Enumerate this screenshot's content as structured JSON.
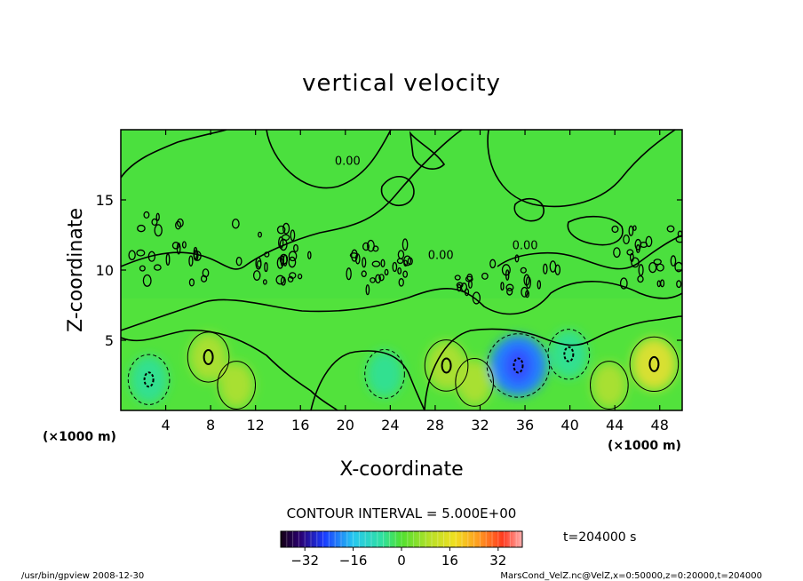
{
  "chart_data": {
    "type": "heatmap",
    "title": "vertical velocity",
    "xlabel": "X-coordinate",
    "ylabel": "Z-coordinate",
    "x_unit_left": "(×1000 m)",
    "x_unit_right": "(×1000 m)",
    "xlim": [
      0,
      50
    ],
    "ylim": [
      0,
      20
    ],
    "x_ticks": [
      4,
      8,
      12,
      16,
      20,
      24,
      28,
      32,
      36,
      40,
      44,
      48
    ],
    "y_ticks": [
      5,
      10,
      15
    ],
    "contour_interval_text": "CONTOUR INTERVAL = 5.000E+00",
    "time_text": "t=204000 s",
    "colorbar": {
      "range": [
        -40,
        40
      ],
      "ticks": [
        -32,
        -16,
        0,
        16,
        32
      ],
      "tick_labels": [
        "−32",
        "−16",
        "0",
        "16",
        "32"
      ]
    },
    "contour_labels": [
      {
        "x": 20.2,
        "y": 17.5,
        "text": "0.00"
      },
      {
        "x": 28.5,
        "y": 10.8,
        "text": "0.00"
      },
      {
        "x": 36.0,
        "y": 11.5,
        "text": "0.00"
      }
    ],
    "features": [
      {
        "x": 2.5,
        "y": 2.2,
        "value": -8
      },
      {
        "x": 7.8,
        "y": 3.8,
        "value": 8
      },
      {
        "x": 10.3,
        "y": 1.8,
        "value": 6
      },
      {
        "x": 23.5,
        "y": 2.6,
        "value": -7
      },
      {
        "x": 29.0,
        "y": 3.2,
        "value": 9
      },
      {
        "x": 31.5,
        "y": 2.0,
        "value": 6
      },
      {
        "x": 35.4,
        "y": 3.2,
        "value": -20
      },
      {
        "x": 39.9,
        "y": 4.0,
        "value": -8
      },
      {
        "x": 43.5,
        "y": 1.8,
        "value": 6
      },
      {
        "x": 47.5,
        "y": 3.3,
        "value": 12
      }
    ]
  },
  "footer": {
    "left": "/usr/bin/gpview   2008-12-30",
    "right": "MarsCond_VelZ.nc@VelZ,x=0:50000,z=0:20000,t=204000"
  }
}
